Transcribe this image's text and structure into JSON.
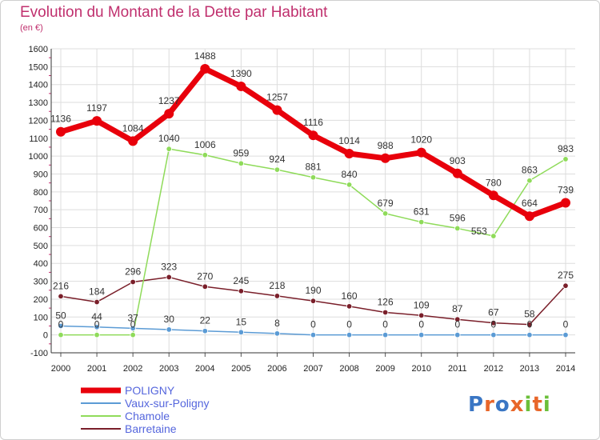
{
  "title": "Evolution du Montant de la Dette par Habitant",
  "subtitle": "(en €)",
  "logo": {
    "text": "Proxiti",
    "colors": [
      "#3a76c4",
      "#e8662a",
      "#3a76c4",
      "#e8662a",
      "#6bbf3a",
      "#e8662a",
      "#6bbf3a"
    ]
  },
  "chart_data": {
    "type": "line",
    "x": [
      "2000",
      "2001",
      "2002",
      "2003",
      "2004",
      "2005",
      "2006",
      "2007",
      "2008",
      "2009",
      "2010",
      "2011",
      "2012",
      "2013",
      "2014"
    ],
    "ylim": [
      -100,
      1600
    ],
    "yticks": [
      "-100",
      "0",
      "100",
      "200",
      "300",
      "400",
      "500",
      "600",
      "700",
      "800",
      "900",
      "1000",
      "1100",
      "1200",
      "1300",
      "1400",
      "1500",
      "1600"
    ],
    "grid": true,
    "legend_position": "bottom-left",
    "series": [
      {
        "name": "POLIGNY",
        "color": "#e8000b",
        "values": [
          1136,
          1197,
          1084,
          1237,
          1488,
          1390,
          1257,
          1116,
          1014,
          988,
          1020,
          903,
          780,
          664,
          739
        ],
        "labels": [
          "1136",
          "1197",
          "1084",
          "1237",
          "1488",
          "1390",
          "1257",
          "1116",
          "1014",
          "988",
          "1020",
          "903",
          "780",
          "664",
          "739"
        ],
        "label_pos": [
          "above",
          "above",
          "above",
          "above",
          "above",
          "above",
          "above",
          "above",
          "above",
          "above",
          "above",
          "above",
          "above",
          "above",
          "above"
        ]
      },
      {
        "name": "Vaux-sur-Poligny",
        "color": "#5b9bd5",
        "values": [
          50,
          44,
          37,
          30,
          22,
          15,
          8,
          0,
          0,
          0,
          0,
          0,
          0,
          0,
          0
        ],
        "labels": [
          "50",
          "44",
          "37",
          "30",
          "22",
          "15",
          "8",
          "0",
          "0",
          "0",
          "0",
          "0",
          "0",
          "0",
          "0"
        ],
        "label_pos": [
          "above",
          "above",
          "above",
          "above",
          "above",
          "above",
          "above",
          "above",
          "above",
          "above",
          "above",
          "above",
          "above",
          "above",
          "above"
        ]
      },
      {
        "name": "Chamole",
        "color": "#8fdb5a",
        "values": [
          0,
          0,
          0,
          1040,
          1006,
          959,
          924,
          881,
          840,
          679,
          631,
          596,
          553,
          863,
          983
        ],
        "labels": [
          "0",
          "0",
          "0",
          "1040",
          "1006",
          "959",
          "924",
          "881",
          "840",
          "679",
          "631",
          "596",
          "553",
          "863",
          "983"
        ],
        "label_pos": [
          "above",
          "above",
          "above",
          "above",
          "above",
          "above",
          "above",
          "above",
          "above",
          "above",
          "above",
          "above",
          "left",
          "above",
          "above"
        ]
      },
      {
        "name": "Barretaine",
        "color": "#7a1f2a",
        "values": [
          216,
          184,
          296,
          323,
          270,
          245,
          218,
          190,
          160,
          126,
          109,
          87,
          67,
          58,
          275
        ],
        "labels": [
          "216",
          "184",
          "296",
          "323",
          "270",
          "245",
          "218",
          "190",
          "160",
          "126",
          "109",
          "87",
          "67",
          "58",
          "275"
        ],
        "label_pos": [
          "above",
          "above",
          "above",
          "above",
          "above",
          "above",
          "above",
          "above",
          "above",
          "above",
          "above",
          "above",
          "above",
          "above",
          "above"
        ]
      }
    ]
  }
}
